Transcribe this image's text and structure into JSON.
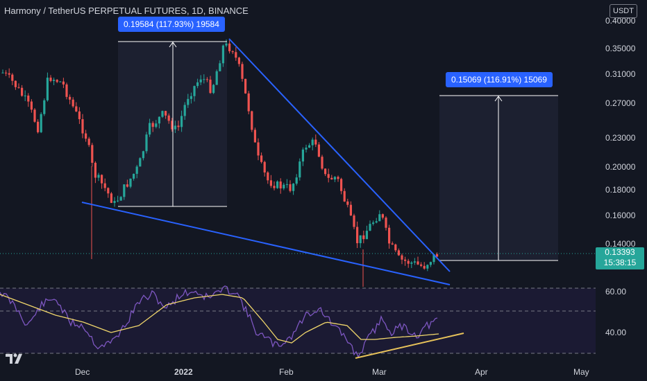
{
  "header": {
    "title": "Harmony / TetherUS PERPETUAL FUTURES, 1D, BINANCE",
    "currency_button": "USDT"
  },
  "price_axis": {
    "ticks": [
      "0.40000",
      "0.35000",
      "0.31000",
      "0.27000",
      "0.23000",
      "0.20000",
      "0.18000",
      "0.16000",
      "0.14000"
    ],
    "current_price": "0.13393",
    "countdown": "15:38:15"
  },
  "rsi_axis": {
    "ticks": [
      "60.00",
      "40.00"
    ]
  },
  "time_axis": {
    "ticks": [
      "Dec",
      "2022",
      "Feb",
      "Mar",
      "Apr",
      "May"
    ]
  },
  "annotations": {
    "left_measure": "0.19584 (117.93%) 19584",
    "right_measure": "0.15069 (116.91%) 15069"
  },
  "colors": {
    "background": "#131722",
    "up": "#26a69a",
    "down": "#ef5350",
    "trendline": "#2962ff",
    "rsi": "#7e57c2",
    "rsi_ma": "#f0d66b",
    "support_line": "#e8c35a"
  }
}
